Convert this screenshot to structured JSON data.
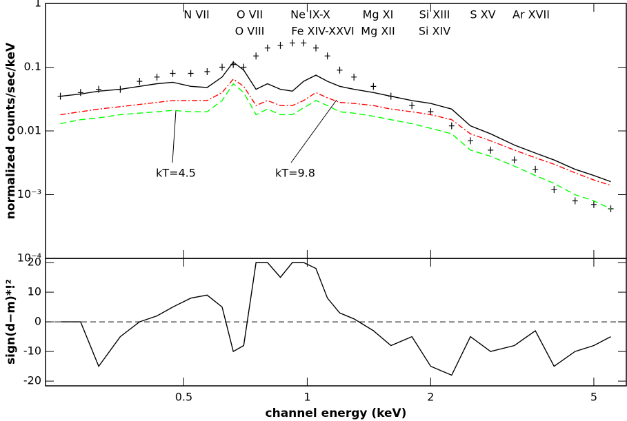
{
  "chart_data": [
    {
      "type": "line",
      "ylabel": "normalized counts/sec/keV",
      "log_y": true,
      "x": [
        0.25,
        0.28,
        0.31,
        0.35,
        0.39,
        0.43,
        0.47,
        0.52,
        0.57,
        0.62,
        0.66,
        0.7,
        0.75,
        0.8,
        0.86,
        0.92,
        0.98,
        1.05,
        1.12,
        1.2,
        1.3,
        1.45,
        1.6,
        1.8,
        2.0,
        2.25,
        2.5,
        2.8,
        3.2,
        3.6,
        4.0,
        4.5,
        5.0,
        5.5
      ],
      "xlim": [
        0.23,
        6
      ],
      "xticks": [
        0.5,
        1,
        2,
        5
      ],
      "log_x": true,
      "ylim": [
        0.0001,
        1
      ],
      "yticks": [
        1,
        0.1,
        0.01,
        {
          "value": 0.001,
          "label": "10⁻³"
        },
        {
          "value": 0.0001,
          "label": "10⁻⁴"
        }
      ],
      "series": [
        {
          "style": "points",
          "color": "#000000",
          "values": [
            0.035,
            0.04,
            0.045,
            0.045,
            0.06,
            0.07,
            0.08,
            0.08,
            0.085,
            0.1,
            0.11,
            0.1,
            0.15,
            0.2,
            0.22,
            0.24,
            0.24,
            0.2,
            0.15,
            0.09,
            0.07,
            0.05,
            0.035,
            0.025,
            0.02,
            0.012,
            0.007,
            0.005,
            0.0035,
            0.0025,
            0.0012,
            0.0008,
            0.0007,
            0.0006
          ]
        },
        {
          "style": "solid",
          "color": "#000000",
          "values": [
            0.035,
            0.038,
            0.042,
            0.045,
            0.05,
            0.055,
            0.058,
            0.05,
            0.048,
            0.07,
            0.12,
            0.09,
            0.045,
            0.055,
            0.045,
            0.042,
            0.06,
            0.075,
            0.06,
            0.05,
            0.045,
            0.04,
            0.035,
            0.03,
            0.027,
            0.022,
            0.012,
            0.009,
            0.006,
            0.0045,
            0.0035,
            0.0025,
            0.002,
            0.0016
          ]
        },
        {
          "name": "kT=9.8",
          "style": "dash-dot",
          "color": "#ff0000",
          "values": [
            0.018,
            0.02,
            0.022,
            0.024,
            0.026,
            0.028,
            0.03,
            0.03,
            0.03,
            0.04,
            0.065,
            0.05,
            0.025,
            0.03,
            0.025,
            0.025,
            0.03,
            0.04,
            0.033,
            0.028,
            0.027,
            0.025,
            0.022,
            0.02,
            0.018,
            0.015,
            0.009,
            0.007,
            0.005,
            0.0038,
            0.003,
            0.0022,
            0.0017,
            0.0014
          ]
        },
        {
          "name": "kT=4.5",
          "style": "dashed",
          "color": "#00ff00",
          "values": [
            0.013,
            0.015,
            0.016,
            0.018,
            0.019,
            0.02,
            0.021,
            0.02,
            0.02,
            0.03,
            0.055,
            0.04,
            0.018,
            0.022,
            0.018,
            0.018,
            0.023,
            0.03,
            0.025,
            0.02,
            0.019,
            0.017,
            0.015,
            0.013,
            0.011,
            0.009,
            0.005,
            0.004,
            0.0028,
            0.002,
            0.0015,
            0.001,
            0.0008,
            0.0006
          ]
        }
      ],
      "annotations": [
        "N VII",
        "O  VII",
        "O VIII",
        "Ne IX-X",
        "Fe XIV-XXVI",
        "Mg XI",
        "Mg XII",
        "Si XIII",
        "Si XIV",
        "S XV",
        "Ar XVII"
      ]
    },
    {
      "type": "step",
      "ylabel": "sign(d−m)*!²",
      "xlabel": "channel energy (keV)",
      "x": [
        0.25,
        0.28,
        0.31,
        0.35,
        0.39,
        0.43,
        0.47,
        0.52,
        0.57,
        0.62,
        0.66,
        0.7,
        0.75,
        0.8,
        0.86,
        0.92,
        0.98,
        1.05,
        1.12,
        1.2,
        1.3,
        1.45,
        1.6,
        1.8,
        2.0,
        2.25,
        2.5,
        2.8,
        3.2,
        3.6,
        4.0,
        4.5,
        5.0,
        5.5
      ],
      "xlim": [
        0.23,
        6
      ],
      "xticks": [
        0.5,
        1,
        2,
        5
      ],
      "log_x": true,
      "values": [
        0,
        0,
        -15,
        -5,
        0,
        2,
        5,
        8,
        9,
        5,
        -10,
        -8,
        20,
        20,
        15,
        20,
        20,
        18,
        8,
        3,
        1,
        -3,
        -8,
        -5,
        -15,
        -18,
        -5,
        -10,
        -8,
        -3,
        -15,
        -10,
        -8,
        -5
      ],
      "color": "#000000",
      "ylim": [
        -21.6,
        21.4
      ],
      "yticks": [
        20,
        10,
        0,
        -10,
        -20
      ]
    }
  ]
}
